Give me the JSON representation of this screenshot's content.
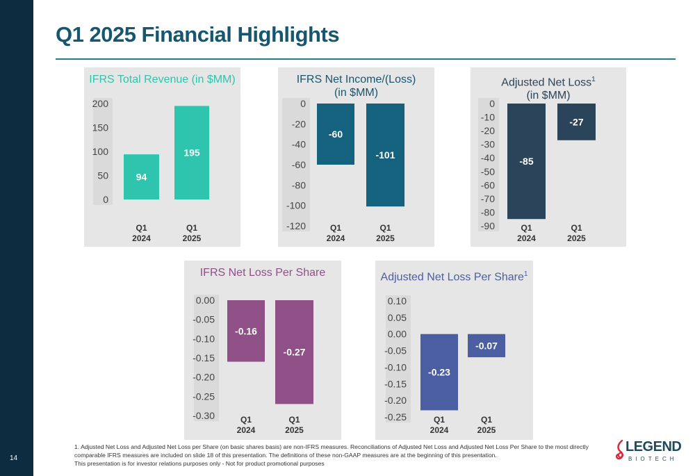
{
  "slide": {
    "title": "Q1 2025 Financial Highlights",
    "page_number": "14"
  },
  "footnote": {
    "line1": "1. Adjusted Net Loss and Adjusted Net Loss per Share (on basic shares basis) are non-IFRS measures. Reconciliations of Adjusted Net Loss and Adjusted Net Loss Per Share to the most directly comparable IFRS measures are included on slide 18 of this presentation. The definitions of these non-GAAP measures are at the beginning of this presentation.",
    "line2": "This presentation is for investor relations purposes only - Not for product promotional purposes"
  },
  "logo": {
    "name": "LEGEND",
    "sub": "BIOTECH"
  },
  "chart_data": [
    {
      "type": "bar",
      "title": "IFRS Total Revenue (in $MM)",
      "title_lines": [
        "IFRS Total Revenue (in $MM)"
      ],
      "sup": "",
      "categories": [
        [
          "Q1",
          "2024"
        ],
        [
          "Q1",
          "2025"
        ]
      ],
      "values": [
        94,
        195
      ],
      "labels": [
        "94",
        "195"
      ],
      "ylim": [
        0,
        200
      ],
      "ticks": [
        "200",
        "150",
        "100",
        "50",
        "0"
      ],
      "color": "#2ec4ae",
      "title_color": "#2ec4ae"
    },
    {
      "type": "bar",
      "title": "IFRS Net Income/(Loss) (in $MM)",
      "title_lines": [
        "IFRS Net Income/(Loss)",
        "(in $MM)"
      ],
      "sup": "",
      "categories": [
        [
          "Q1",
          "2024"
        ],
        [
          "Q1",
          "2025"
        ]
      ],
      "values": [
        -60,
        -101
      ],
      "labels": [
        "-60",
        "-101"
      ],
      "ylim": [
        -120,
        0
      ],
      "ticks": [
        "0",
        "-20",
        "-40",
        "-60",
        "-80",
        "-100",
        "-120"
      ],
      "color": "#15627f",
      "title_color": "#17566f"
    },
    {
      "type": "bar",
      "title": "Adjusted Net Loss (in $MM)",
      "title_lines": [
        "Adjusted Net Loss",
        "(in $MM)"
      ],
      "sup": "1",
      "categories": [
        [
          "Q1",
          "2024"
        ],
        [
          "Q1",
          "2025"
        ]
      ],
      "values": [
        -85,
        -27
      ],
      "labels": [
        "-85",
        "-27"
      ],
      "ylim": [
        -90,
        0
      ],
      "ticks": [
        "0",
        "-10",
        "-20",
        "-30",
        "-40",
        "-50",
        "-60",
        "-70",
        "-80",
        "-90"
      ],
      "color": "#2c4459",
      "title_color": "#2c4459"
    },
    {
      "type": "bar",
      "title": "IFRS Net Loss Per Share",
      "title_lines": [
        "IFRS Net Loss Per Share"
      ],
      "sup": "",
      "categories": [
        [
          "Q1",
          "2024"
        ],
        [
          "Q1",
          "2025"
        ]
      ],
      "values": [
        -0.16,
        -0.27
      ],
      "labels": [
        "-0.16",
        "-0.27"
      ],
      "ylim": [
        -0.3,
        0
      ],
      "ticks": [
        "0.00",
        "-0.05",
        "-0.10",
        "-0.15",
        "-0.20",
        "-0.25",
        "-0.30"
      ],
      "color": "#8f4f87",
      "title_color": "#8f4f87"
    },
    {
      "type": "bar",
      "title": "Adjusted Net Loss Per Share",
      "title_lines": [
        "Adjusted Net Loss Per Share"
      ],
      "sup": "1",
      "categories": [
        [
          "Q1",
          "2024"
        ],
        [
          "Q1",
          "2025"
        ]
      ],
      "values": [
        -0.23,
        -0.07
      ],
      "labels": [
        "-0.23",
        "-0.07"
      ],
      "ylim": [
        -0.25,
        0.1
      ],
      "ticks": [
        "0.10",
        "0.05",
        "0.00",
        "-0.05",
        "-0.10",
        "-0.15",
        "-0.20",
        "-0.25"
      ],
      "color": "#4a5ea1",
      "title_color": "#4a5ea1"
    }
  ]
}
